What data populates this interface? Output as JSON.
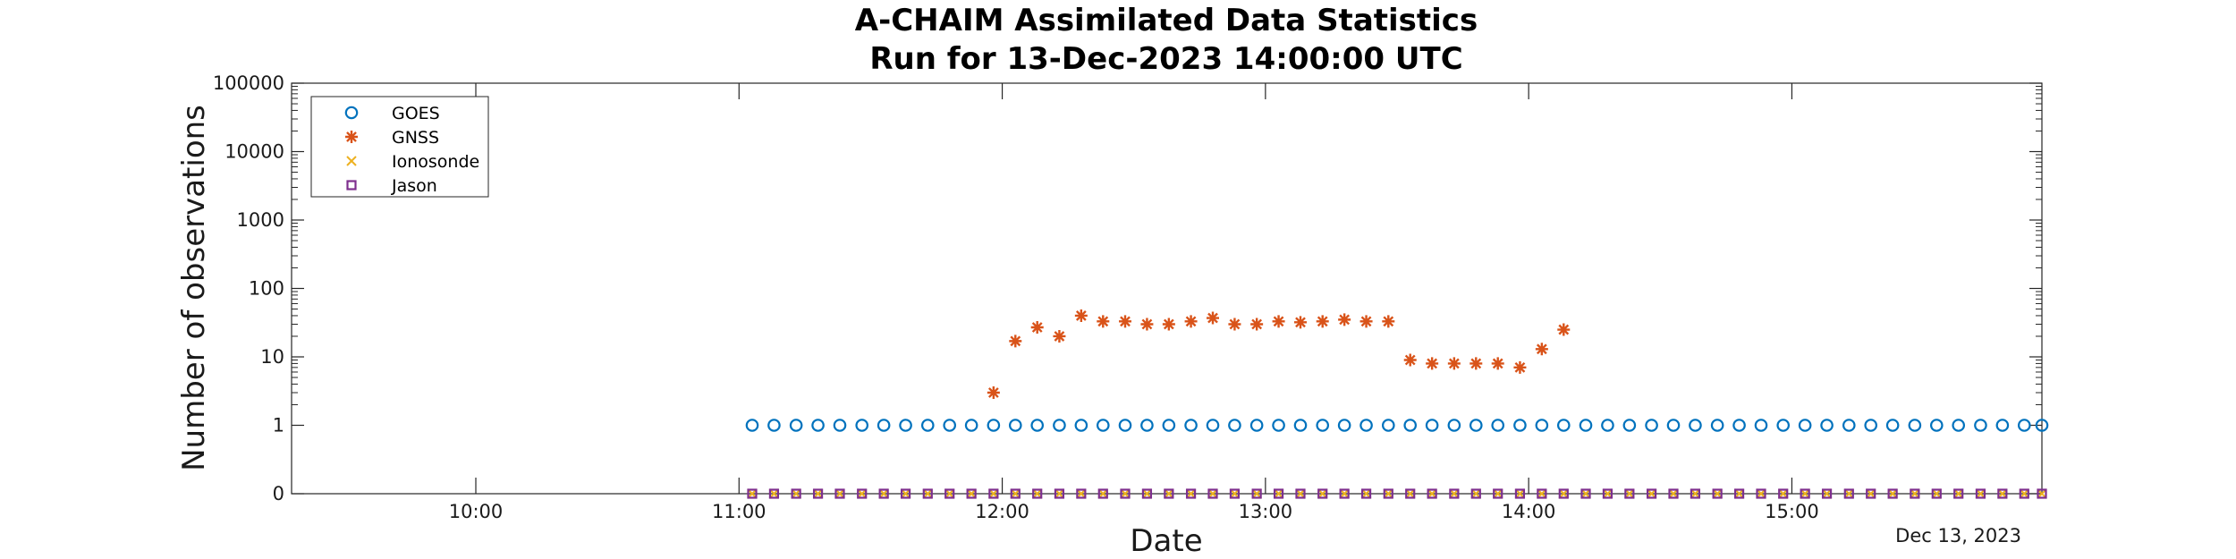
{
  "chart_data": {
    "type": "scatter",
    "title": [
      "A-CHAIM Assimilated Data Statistics",
      "Run for 13-Dec-2023 14:00:00 UTC"
    ],
    "xlabel": "Date",
    "ylabel": "Number of observations",
    "x_axis_note": "Dec 13, 2023",
    "x_unit": "time of day (hours, UTC)",
    "xlim": [
      9.3,
      15.95
    ],
    "x_ticks": [
      10,
      11,
      12,
      13,
      14,
      15
    ],
    "x_tick_labels": [
      "10:00",
      "11:00",
      "12:00",
      "13:00",
      "14:00",
      "15:00"
    ],
    "y_scale": "log",
    "y_ticks": [
      0,
      1,
      10,
      100,
      1000,
      10000,
      100000
    ],
    "y_tick_labels": [
      "0",
      "1",
      "10",
      "100",
      "1000",
      "10000",
      "100000"
    ],
    "grid": false,
    "legend_position": "top-left",
    "series": [
      {
        "name": "GOES",
        "marker": "circle",
        "color": "#0072BD",
        "x": [
          11.05,
          11.133,
          11.217,
          11.3,
          11.383,
          11.467,
          11.55,
          11.633,
          11.717,
          11.8,
          11.883,
          11.967,
          12.05,
          12.133,
          12.217,
          12.3,
          12.383,
          12.467,
          12.55,
          12.633,
          12.717,
          12.8,
          12.883,
          12.967,
          13.05,
          13.133,
          13.217,
          13.3,
          13.383,
          13.467,
          13.55,
          13.633,
          13.717,
          13.8,
          13.883,
          13.967,
          14.05,
          14.133,
          14.217,
          14.3,
          14.383,
          14.467,
          14.55,
          14.633,
          14.717,
          14.8,
          14.883,
          14.967,
          15.05,
          15.133,
          15.217,
          15.3,
          15.383,
          15.467,
          15.55,
          15.633,
          15.717,
          15.8,
          15.883,
          15.95
        ],
        "y": [
          1,
          1,
          1,
          1,
          1,
          1,
          1,
          1,
          1,
          1,
          1,
          1,
          1,
          1,
          1,
          1,
          1,
          1,
          1,
          1,
          1,
          1,
          1,
          1,
          1,
          1,
          1,
          1,
          1,
          1,
          1,
          1,
          1,
          1,
          1,
          1,
          1,
          1,
          1,
          1,
          1,
          1,
          1,
          1,
          1,
          1,
          1,
          1,
          1,
          1,
          1,
          1,
          1,
          1,
          1,
          1,
          1,
          1,
          1,
          1
        ]
      },
      {
        "name": "GNSS",
        "marker": "asterisk",
        "color": "#D95319",
        "x": [
          11.05,
          11.133,
          11.217,
          11.3,
          11.383,
          11.467,
          11.55,
          11.633,
          11.717,
          11.8,
          11.883,
          11.967,
          12.05,
          12.133,
          12.217,
          12.3,
          12.383,
          12.467,
          12.55,
          12.633,
          12.717,
          12.8,
          12.883,
          12.967,
          13.05,
          13.133,
          13.217,
          13.3,
          13.383,
          13.467,
          13.55,
          13.633,
          13.717,
          13.8,
          13.883,
          13.967,
          14.05,
          14.133,
          14.217,
          14.3,
          14.383,
          14.467,
          14.55,
          14.633,
          14.717,
          14.8,
          14.883,
          14.967,
          15.05,
          15.133,
          15.217,
          15.3,
          15.383,
          15.467,
          15.55,
          15.633,
          15.717,
          15.8,
          15.883,
          15.95
        ],
        "y": [
          0,
          0,
          0,
          0,
          0,
          0,
          0,
          0,
          0,
          0,
          0,
          3,
          17,
          27,
          20,
          40,
          33,
          33,
          30,
          30,
          33,
          37,
          30,
          30,
          33,
          32,
          33,
          35,
          33,
          33,
          9,
          8,
          8,
          8,
          8,
          7,
          13,
          25,
          0,
          0,
          0,
          0,
          0,
          0,
          0,
          0,
          0,
          0,
          0,
          0,
          0,
          0,
          0,
          0,
          0,
          0,
          0,
          0,
          0,
          0
        ]
      },
      {
        "name": "Ionosonde",
        "marker": "x",
        "color": "#EDB120",
        "x": [
          11.05,
          11.133,
          11.217,
          11.3,
          11.383,
          11.467,
          11.55,
          11.633,
          11.717,
          11.8,
          11.883,
          11.967,
          12.05,
          12.133,
          12.217,
          12.3,
          12.383,
          12.467,
          12.55,
          12.633,
          12.717,
          12.8,
          12.883,
          12.967,
          13.05,
          13.133,
          13.217,
          13.3,
          13.383,
          13.467,
          13.55,
          13.633,
          13.717,
          13.8,
          13.883,
          13.967,
          14.05,
          14.133,
          14.217,
          14.3,
          14.383,
          14.467,
          14.55,
          14.633,
          14.717,
          14.8,
          14.883,
          14.967,
          15.05,
          15.133,
          15.217,
          15.3,
          15.383,
          15.467,
          15.55,
          15.633,
          15.717,
          15.8,
          15.883,
          15.95
        ],
        "y": [
          0,
          0,
          0,
          0,
          0,
          0,
          0,
          0,
          0,
          0,
          0,
          0,
          0,
          0,
          0,
          0,
          0,
          0,
          0,
          0,
          0,
          0,
          0,
          0,
          0,
          0,
          0,
          0,
          0,
          0,
          0,
          0,
          0,
          0,
          0,
          0,
          0,
          0,
          0,
          0,
          0,
          0,
          0,
          0,
          0,
          0,
          0,
          0,
          0,
          0,
          0,
          0,
          0,
          0,
          0,
          0,
          0,
          0,
          0,
          0
        ]
      },
      {
        "name": "Jason",
        "marker": "square",
        "color": "#7E2F8E",
        "x": [
          11.05,
          11.133,
          11.217,
          11.3,
          11.383,
          11.467,
          11.55,
          11.633,
          11.717,
          11.8,
          11.883,
          11.967,
          12.05,
          12.133,
          12.217,
          12.3,
          12.383,
          12.467,
          12.55,
          12.633,
          12.717,
          12.8,
          12.883,
          12.967,
          13.05,
          13.133,
          13.217,
          13.3,
          13.383,
          13.467,
          13.55,
          13.633,
          13.717,
          13.8,
          13.883,
          13.967,
          14.05,
          14.133,
          14.217,
          14.3,
          14.383,
          14.467,
          14.55,
          14.633,
          14.717,
          14.8,
          14.883,
          14.967,
          15.05,
          15.133,
          15.217,
          15.3,
          15.383,
          15.467,
          15.55,
          15.633,
          15.717,
          15.8,
          15.883,
          15.95
        ],
        "y": [
          0,
          0,
          0,
          0,
          0,
          0,
          0,
          0,
          0,
          0,
          0,
          0,
          0,
          0,
          0,
          0,
          0,
          0,
          0,
          0,
          0,
          0,
          0,
          0,
          0,
          0,
          0,
          0,
          0,
          0,
          0,
          0,
          0,
          0,
          0,
          0,
          0,
          0,
          0,
          0,
          0,
          0,
          0,
          0,
          0,
          0,
          0,
          0,
          0,
          0,
          0,
          0,
          0,
          0,
          0,
          0,
          0,
          0,
          0,
          0
        ]
      }
    ]
  }
}
